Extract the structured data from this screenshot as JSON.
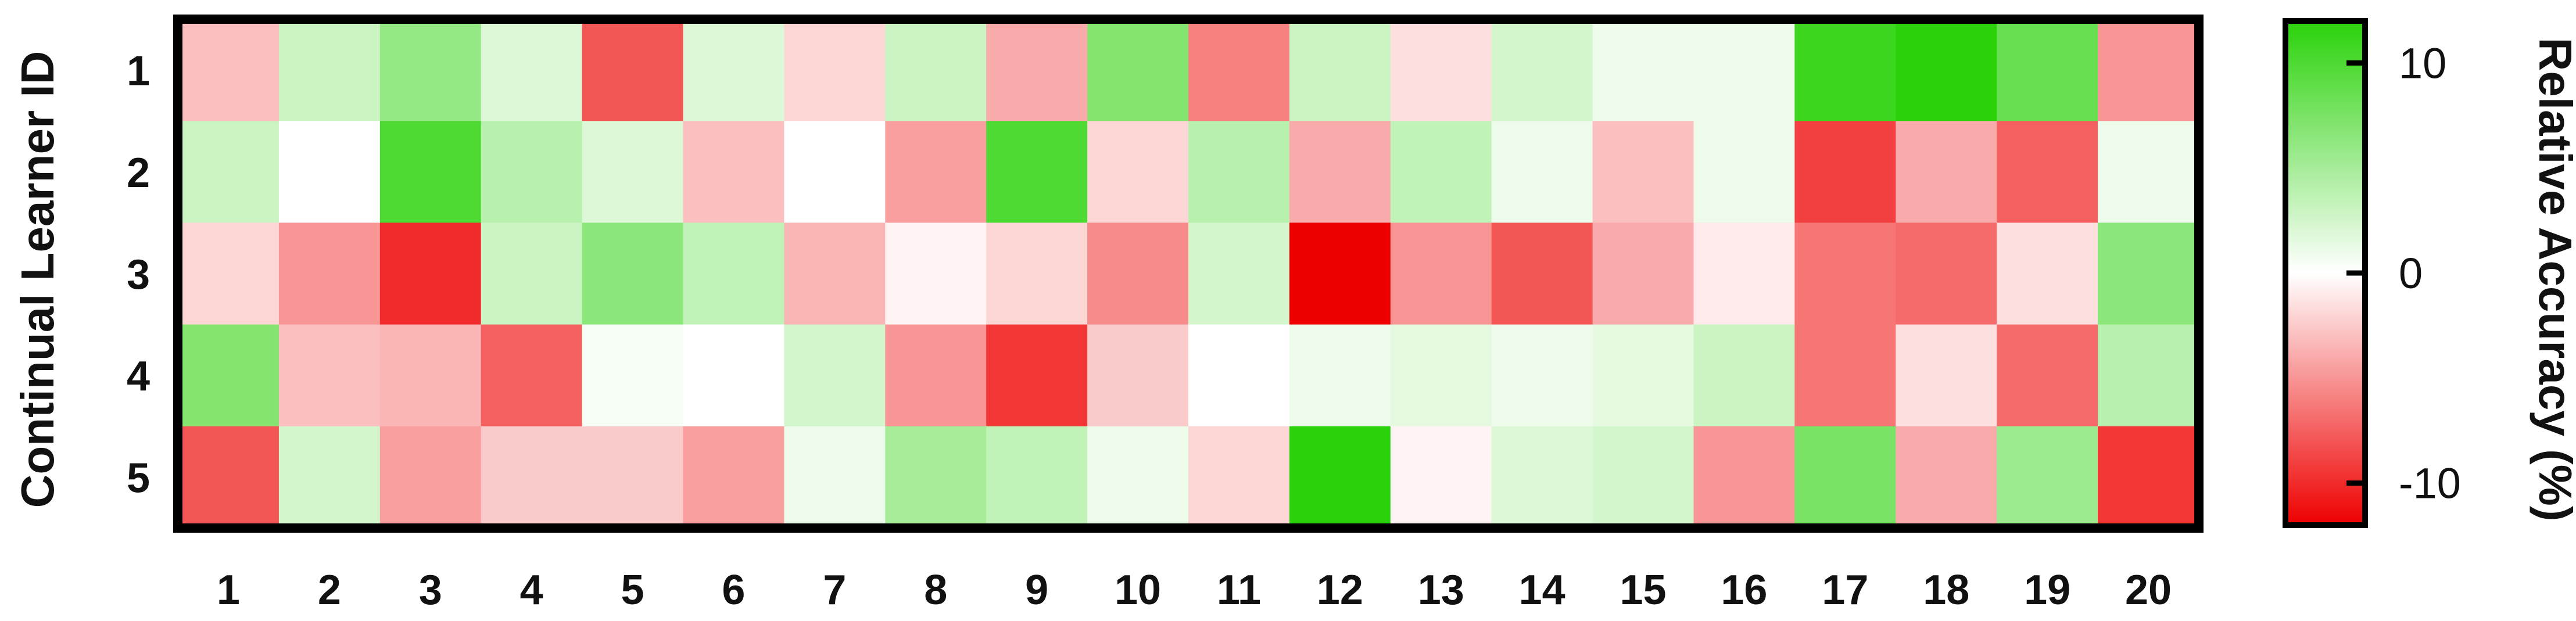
{
  "chart_data": {
    "type": "heatmap",
    "title": "",
    "xlabel": "",
    "ylabel": "Continual Learner ID",
    "x_categories": [
      "1",
      "2",
      "3",
      "4",
      "5",
      "6",
      "7",
      "8",
      "9",
      "10",
      "11",
      "12",
      "13",
      "14",
      "15",
      "16",
      "17",
      "18",
      "19",
      "20"
    ],
    "y_categories": [
      "1",
      "2",
      "3",
      "4",
      "5"
    ],
    "values": [
      [
        -3,
        3,
        6,
        2,
        -8,
        2,
        -2,
        3,
        -4,
        7,
        -6,
        3,
        -1.5,
        2.5,
        1,
        1,
        11,
        13.5,
        8.5,
        -5
      ],
      [
        3,
        0,
        10,
        4,
        2,
        -3,
        0,
        -4.5,
        10,
        -2,
        4,
        -4,
        3.5,
        1,
        -3,
        1,
        -9,
        -4,
        -7.5,
        1
      ],
      [
        -2,
        -5,
        -10,
        3,
        6.5,
        3.5,
        -3.5,
        -0.5,
        -2,
        -5.5,
        2.5,
        -14,
        -5,
        -8,
        -4,
        -1,
        -6.5,
        -7,
        -1.5,
        6.5
      ],
      [
        7,
        -3,
        -3.5,
        -7.5,
        0.5,
        0,
        2.5,
        -5,
        -9.5,
        -2.5,
        0,
        1,
        1.5,
        1,
        1.5,
        3,
        -6.5,
        -1.5,
        -7,
        4
      ],
      [
        -8,
        2.5,
        -4.5,
        -2.5,
        -2.5,
        -4.5,
        1,
        5,
        3.5,
        1,
        -2,
        12,
        -0.5,
        2,
        2.5,
        -5,
        7.5,
        -4,
        5.5,
        -9.5
      ]
    ],
    "colorbar": {
      "label": "Relative Accuracy (%)",
      "ticks": [
        "10",
        "0",
        "-10"
      ],
      "tick_values": [
        10,
        0,
        -10
      ],
      "range": [
        -12,
        12
      ],
      "color_high": "#2ad20a",
      "color_mid": "#ffffff",
      "color_low": "#ee0000"
    },
    "grid": false,
    "legend": "colorbar-right"
  }
}
